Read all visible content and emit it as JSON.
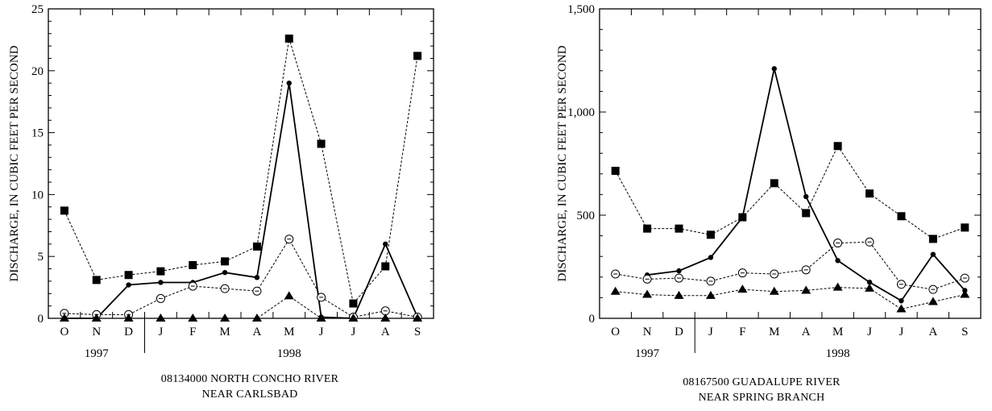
{
  "chart_data": [
    {
      "type": "line",
      "title": "08134000  NORTH CONCHO RIVER\nNEAR CARLSBAD",
      "title_lines": [
        "08134000  NORTH CONCHO RIVER",
        "NEAR CARLSBAD"
      ],
      "ylabel": "DISCHARGE, IN CUBIC FEET PER SECOND",
      "xlabel": "",
      "categories": [
        "O",
        "N",
        "D",
        "J",
        "F",
        "M",
        "A",
        "M",
        "J",
        "J",
        "A",
        "S"
      ],
      "year_labels": [
        {
          "text": "1997",
          "center_index": 1
        },
        {
          "text": "1998",
          "center_index": 7
        }
      ],
      "year_divider_after_index": 2,
      "ylim": [
        0,
        25
      ],
      "yticks": [
        0,
        5,
        10,
        15,
        20,
        25
      ],
      "ytick_labels": [
        "0",
        "5",
        "10",
        "15",
        "20",
        "25"
      ],
      "grid": false,
      "series": [
        {
          "style": "dashed",
          "marker": "filled-square",
          "values": [
            8.7,
            3.1,
            3.5,
            3.8,
            4.3,
            4.6,
            5.8,
            22.6,
            14.1,
            1.2,
            4.2,
            21.2
          ]
        },
        {
          "style": "solid",
          "marker": "filled-circle",
          "values": [
            0,
            0,
            2.7,
            2.9,
            2.9,
            3.7,
            3.3,
            19.0,
            0.1,
            0,
            6.0,
            0.1
          ]
        },
        {
          "style": "dashed",
          "marker": "open-circle",
          "values": [
            0.4,
            0.3,
            0.3,
            1.6,
            2.6,
            2.4,
            2.2,
            6.4,
            1.7,
            0.1,
            0.6,
            0.1
          ]
        },
        {
          "style": "dashed",
          "marker": "filled-triangle",
          "values": [
            0,
            0,
            0,
            0,
            0,
            0,
            0,
            1.8,
            0,
            0,
            0,
            0
          ]
        }
      ]
    },
    {
      "type": "line",
      "title": "08167500  GUADALUPE RIVER\nNEAR SPRING BRANCH",
      "title_lines": [
        "08167500  GUADALUPE RIVER",
        "NEAR SPRING BRANCH"
      ],
      "ylabel": "DISCHARGE, IN CUBIC FEET PER SECOND",
      "xlabel": "",
      "categories": [
        "O",
        "N",
        "D",
        "J",
        "F",
        "M",
        "A",
        "M",
        "J",
        "J",
        "A",
        "S"
      ],
      "year_labels": [
        {
          "text": "1997",
          "center_index": 1
        },
        {
          "text": "1998",
          "center_index": 7
        }
      ],
      "year_divider_after_index": 2,
      "ylim": [
        0,
        1500
      ],
      "yticks": [
        0,
        500,
        1000,
        1500
      ],
      "ytick_labels": [
        "0",
        "500",
        "1,000",
        "1,500"
      ],
      "grid": false,
      "series": [
        {
          "style": "dashed",
          "marker": "filled-square",
          "values": [
            715,
            435,
            435,
            405,
            490,
            655,
            510,
            835,
            605,
            495,
            385,
            440
          ]
        },
        {
          "style": "solid",
          "marker": "filled-circle",
          "values": [
            null,
            210,
            230,
            295,
            490,
            1210,
            590,
            280,
            175,
            85,
            310,
            135
          ]
        },
        {
          "style": "dashed",
          "marker": "open-circle",
          "values": [
            215,
            190,
            195,
            180,
            220,
            215,
            235,
            365,
            370,
            165,
            140,
            195
          ]
        },
        {
          "style": "dashed",
          "marker": "filled-triangle",
          "values": [
            130,
            115,
            110,
            110,
            140,
            130,
            135,
            150,
            145,
            45,
            80,
            115
          ]
        }
      ]
    }
  ]
}
